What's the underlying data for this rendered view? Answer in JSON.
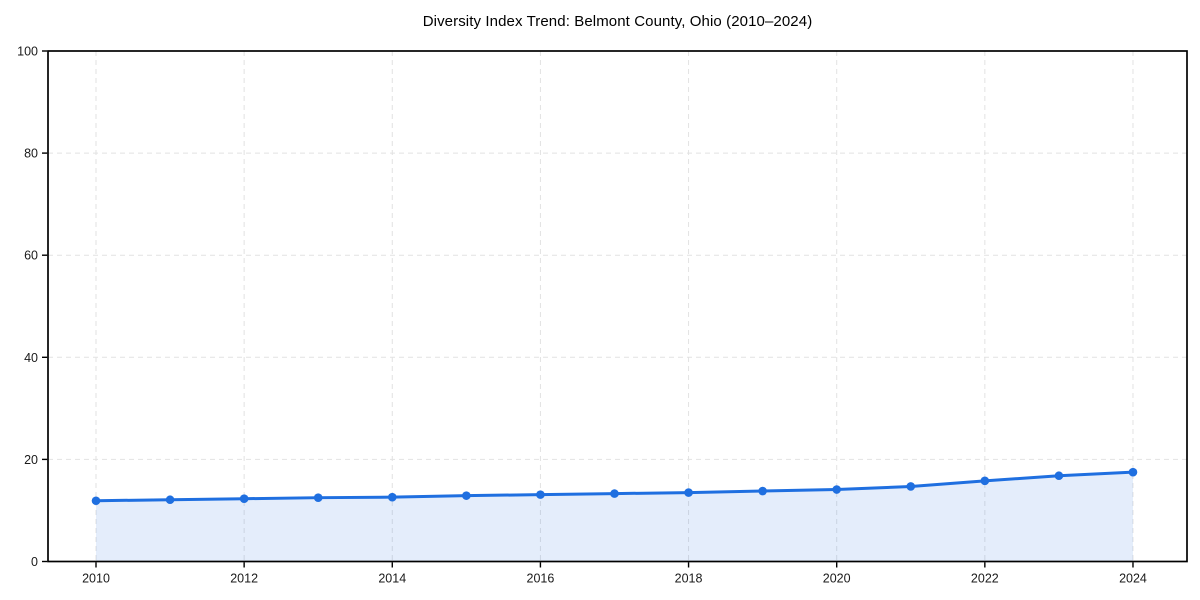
{
  "page": {
    "background": "#ffffff"
  },
  "chart_data": {
    "type": "line",
    "title": "Diversity Index Trend: Belmont County, Ohio (2010–2024)",
    "xlabel": "",
    "ylabel": "",
    "x": [
      2010,
      2011,
      2012,
      2013,
      2014,
      2015,
      2016,
      2017,
      2018,
      2019,
      2020,
      2021,
      2022,
      2023,
      2024
    ],
    "series": [
      {
        "name": "Diversity Index",
        "values": [
          11.9,
          12.1,
          12.3,
          12.5,
          12.6,
          12.9,
          13.1,
          13.3,
          13.5,
          13.8,
          14.1,
          14.7,
          15.8,
          16.8,
          17.5
        ]
      }
    ],
    "ylim": [
      0,
      100
    ],
    "yticks": [
      0,
      20,
      40,
      60,
      80,
      100
    ],
    "xticks": [
      2010,
      2012,
      2014,
      2016,
      2018,
      2020,
      2022,
      2024
    ],
    "grid": true,
    "grid_style": "dashed",
    "legend": "none",
    "marker": "circle",
    "area_fill": true,
    "colors": {
      "line": "#1f6fe0",
      "marker": "#1f6fe0",
      "fill": "#1f6fe0",
      "fill_opacity": 0.12,
      "grid": "#e2e2e2",
      "axis": "#000000",
      "tick_label": "#1a1a1a",
      "title": "#000000",
      "plot_background": "#ffffff"
    }
  }
}
